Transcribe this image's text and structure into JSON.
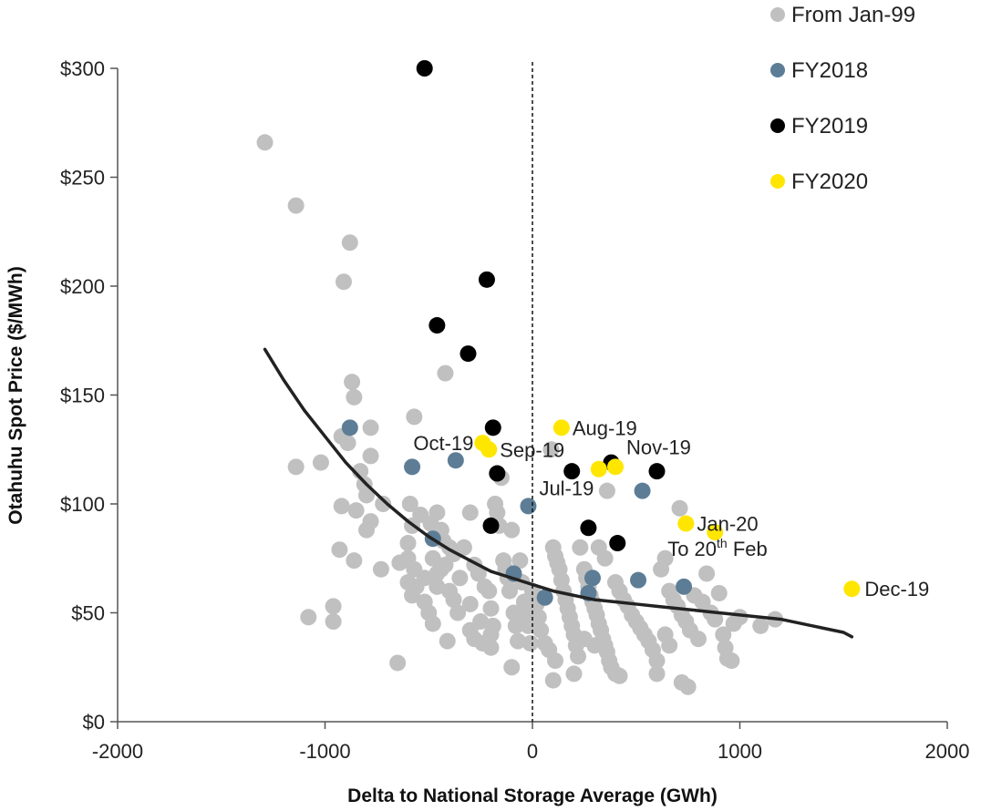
{
  "chart_data": {
    "type": "scatter",
    "title": "",
    "xlabel": "Delta to National Storage Average (GWh)",
    "ylabel": "Otahuhu Spot Price ($/MWh)",
    "xlim": [
      -2000,
      2000
    ],
    "ylim": [
      0,
      300
    ],
    "x_ticks": [
      -2000,
      -1000,
      0,
      1000,
      2000
    ],
    "x_tick_labels": [
      "-2000",
      "-1000",
      "0",
      "1000",
      "2000"
    ],
    "y_ticks": [
      0,
      50,
      100,
      150,
      200,
      250,
      300
    ],
    "y_tick_labels": [
      "$0",
      "$50",
      "$100",
      "$150",
      "$200",
      "$250",
      "$300"
    ],
    "grid": false,
    "legend_position": "top-right",
    "reference_line": {
      "x": 0,
      "style": "dashed"
    },
    "series": [
      {
        "name": "From Jan-99",
        "color": "#c0c0c0",
        "points": [
          [
            -1290,
            266
          ],
          [
            -1140,
            237
          ],
          [
            -880,
            220
          ],
          [
            -910,
            202
          ],
          [
            -870,
            156
          ],
          [
            -860,
            149
          ],
          [
            -570,
            140
          ],
          [
            -920,
            131
          ],
          [
            -890,
            128
          ],
          [
            -780,
            135
          ],
          [
            -780,
            122
          ],
          [
            -1140,
            117
          ],
          [
            -1020,
            119
          ],
          [
            -830,
            115
          ],
          [
            -810,
            109
          ],
          [
            -800,
            104
          ],
          [
            -720,
            100
          ],
          [
            -590,
            100
          ],
          [
            -420,
            160
          ],
          [
            -780,
            92
          ],
          [
            -800,
            88
          ],
          [
            -920,
            99
          ],
          [
            -930,
            79
          ],
          [
            -860,
            74
          ],
          [
            -730,
            70
          ],
          [
            -640,
            73
          ],
          [
            -600,
            75
          ],
          [
            -570,
            70
          ],
          [
            -600,
            82
          ],
          [
            -580,
            90
          ],
          [
            -540,
            95
          ],
          [
            -490,
            91
          ],
          [
            -460,
            96
          ],
          [
            -440,
            88
          ],
          [
            -430,
            83
          ],
          [
            -400,
            80
          ],
          [
            -380,
            77
          ],
          [
            -420,
            72
          ],
          [
            -460,
            68
          ],
          [
            -480,
            75
          ],
          [
            -520,
            66
          ],
          [
            -560,
            62
          ],
          [
            -580,
            58
          ],
          [
            -520,
            55
          ],
          [
            -500,
            50
          ],
          [
            -480,
            45
          ],
          [
            -600,
            64
          ],
          [
            -460,
            62
          ],
          [
            -440,
            70
          ],
          [
            -400,
            60
          ],
          [
            -380,
            56
          ],
          [
            -360,
            50
          ],
          [
            -350,
            66
          ],
          [
            -330,
            80
          ],
          [
            -300,
            96
          ],
          [
            -280,
            72
          ],
          [
            -260,
            68
          ],
          [
            -300,
            54
          ],
          [
            -300,
            42
          ],
          [
            -280,
            38
          ],
          [
            -250,
            46
          ],
          [
            -230,
            62
          ],
          [
            -210,
            60
          ],
          [
            -200,
            52
          ],
          [
            -190,
            44
          ],
          [
            -200,
            34
          ],
          [
            -180,
            100
          ],
          [
            -170,
            96
          ],
          [
            -160,
            90
          ],
          [
            -150,
            112
          ],
          [
            -140,
            74
          ],
          [
            -130,
            70
          ],
          [
            -120,
            66
          ],
          [
            -110,
            60
          ],
          [
            -100,
            88
          ],
          [
            -90,
            50
          ],
          [
            -80,
            44
          ],
          [
            -70,
            37
          ],
          [
            -60,
            74
          ],
          [
            -50,
            64
          ],
          [
            -40,
            55
          ],
          [
            -30,
            49
          ],
          [
            -20,
            44
          ],
          [
            -10,
            36
          ],
          [
            -410,
            37
          ],
          [
            -650,
            27
          ],
          [
            -960,
            53
          ],
          [
            -960,
            46
          ],
          [
            -1080,
            48
          ],
          [
            -100,
            25
          ],
          [
            -850,
            97
          ],
          [
            0,
            60
          ],
          [
            20,
            54
          ],
          [
            30,
            48
          ],
          [
            40,
            42
          ],
          [
            60,
            36
          ],
          [
            80,
            33
          ],
          [
            90,
            125
          ],
          [
            100,
            80
          ],
          [
            110,
            76
          ],
          [
            120,
            73
          ],
          [
            130,
            70
          ],
          [
            140,
            65
          ],
          [
            150,
            60
          ],
          [
            160,
            56
          ],
          [
            170,
            52
          ],
          [
            180,
            48
          ],
          [
            190,
            44
          ],
          [
            200,
            40
          ],
          [
            210,
            35
          ],
          [
            220,
            30
          ],
          [
            110,
            28
          ],
          [
            100,
            19
          ],
          [
            200,
            22
          ],
          [
            230,
            80
          ],
          [
            250,
            70
          ],
          [
            260,
            66
          ],
          [
            270,
            62
          ],
          [
            280,
            58
          ],
          [
            290,
            55
          ],
          [
            300,
            52
          ],
          [
            310,
            49
          ],
          [
            320,
            45
          ],
          [
            330,
            42
          ],
          [
            340,
            38
          ],
          [
            350,
            35
          ],
          [
            360,
            32
          ],
          [
            370,
            28
          ],
          [
            380,
            25
          ],
          [
            400,
            22
          ],
          [
            420,
            21
          ],
          [
            320,
            80
          ],
          [
            350,
            75
          ],
          [
            360,
            106
          ],
          [
            400,
            64
          ],
          [
            420,
            60
          ],
          [
            440,
            56
          ],
          [
            460,
            53
          ],
          [
            480,
            49
          ],
          [
            500,
            46
          ],
          [
            520,
            43
          ],
          [
            540,
            40
          ],
          [
            560,
            37
          ],
          [
            580,
            33
          ],
          [
            600,
            28
          ],
          [
            600,
            22
          ],
          [
            620,
            70
          ],
          [
            640,
            75
          ],
          [
            660,
            60
          ],
          [
            680,
            56
          ],
          [
            700,
            53
          ],
          [
            710,
            98
          ],
          [
            720,
            49
          ],
          [
            740,
            46
          ],
          [
            760,
            42
          ],
          [
            780,
            58
          ],
          [
            800,
            38
          ],
          [
            820,
            55
          ],
          [
            840,
            68
          ],
          [
            860,
            50
          ],
          [
            880,
            47
          ],
          [
            900,
            59
          ],
          [
            920,
            40
          ],
          [
            930,
            34
          ],
          [
            940,
            29
          ],
          [
            960,
            28
          ],
          [
            970,
            45
          ],
          [
            1000,
            48
          ],
          [
            1100,
            44
          ],
          [
            1170,
            47
          ],
          [
            720,
            18
          ],
          [
            750,
            16
          ],
          [
            640,
            40
          ],
          [
            660,
            35
          ],
          [
            300,
            35
          ],
          [
            250,
            38
          ],
          [
            -240,
            36
          ],
          [
            -200,
            40
          ]
        ]
      },
      {
        "name": "FY2018",
        "color": "#5d7d96",
        "points": [
          [
            -880,
            135
          ],
          [
            -580,
            117
          ],
          [
            -370,
            120
          ],
          [
            -480,
            84
          ],
          [
            -90,
            68
          ],
          [
            -20,
            99
          ],
          [
            60,
            57
          ],
          [
            270,
            59
          ],
          [
            290,
            66
          ],
          [
            510,
            65
          ],
          [
            530,
            106
          ],
          [
            730,
            62
          ]
        ]
      },
      {
        "name": "FY2019",
        "color": "#000000",
        "points": [
          [
            -520,
            300
          ],
          [
            -220,
            203
          ],
          [
            -460,
            182
          ],
          [
            -310,
            169
          ],
          [
            -190,
            135
          ],
          [
            -170,
            114
          ],
          [
            -200,
            90
          ],
          [
            190,
            115
          ],
          [
            270,
            89
          ],
          [
            380,
            119
          ],
          [
            410,
            82
          ],
          [
            600,
            115
          ]
        ]
      },
      {
        "name": "FY2020",
        "color": "#ffe600",
        "points": [
          [
            140,
            135
          ],
          [
            -240,
            128
          ],
          [
            -210,
            125
          ],
          [
            320,
            116
          ],
          [
            400,
            117
          ],
          [
            740,
            91
          ],
          [
            880,
            87
          ],
          [
            1540,
            61
          ]
        ]
      }
    ],
    "trendline": {
      "color": "#222222",
      "points": [
        [
          -1290,
          171
        ],
        [
          -1200,
          157
        ],
        [
          -1100,
          143
        ],
        [
          -1000,
          131
        ],
        [
          -900,
          119
        ],
        [
          -800,
          109
        ],
        [
          -700,
          100
        ],
        [
          -600,
          92
        ],
        [
          -500,
          85
        ],
        [
          -400,
          79
        ],
        [
          -300,
          74
        ],
        [
          -200,
          69
        ],
        [
          -100,
          66
        ],
        [
          0,
          63
        ],
        [
          100,
          60
        ],
        [
          200,
          58
        ],
        [
          300,
          56
        ],
        [
          400,
          55
        ],
        [
          500,
          54
        ],
        [
          600,
          53
        ],
        [
          700,
          52
        ],
        [
          800,
          51
        ],
        [
          900,
          50
        ],
        [
          1000,
          49
        ],
        [
          1100,
          48
        ],
        [
          1200,
          47
        ],
        [
          1300,
          45
        ],
        [
          1400,
          43
        ],
        [
          1500,
          41
        ],
        [
          1540,
          39
        ]
      ]
    },
    "annotations": [
      {
        "text": "Aug-19",
        "x": 140,
        "y": 135
      },
      {
        "text": "Oct-19",
        "x": -240,
        "y": 128
      },
      {
        "text": "Sep-19",
        "x": -210,
        "y": 125
      },
      {
        "text": "Nov-19",
        "x": 400,
        "y": 117
      },
      {
        "text": "Jul-19",
        "x": -20,
        "y": 99
      },
      {
        "text": "Jan-20",
        "x": 740,
        "y": 91
      },
      {
        "text": "To 20",
        "sup": "th",
        "tail": " Feb",
        "x": 880,
        "y": 87
      },
      {
        "text": "Dec-19",
        "x": 1540,
        "y": 61
      }
    ]
  }
}
